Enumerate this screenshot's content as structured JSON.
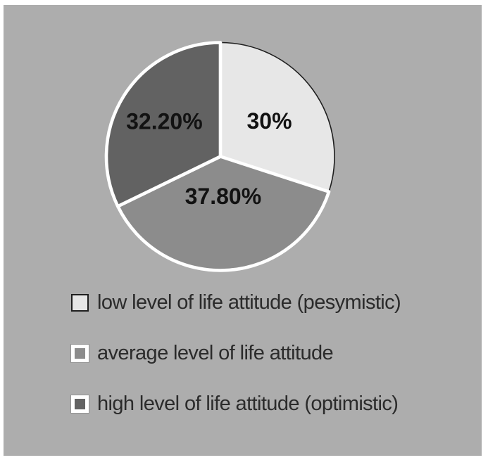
{
  "panel": {
    "background_color": "#adadad",
    "page_background_color": "#ffffff"
  },
  "chart_data": {
    "type": "pie",
    "title": "",
    "start_angle_deg": 0,
    "direction": "clockwise",
    "legend_position": "bottom",
    "label_color": "#121212",
    "slices": [
      {
        "label": "30%",
        "value": 30,
        "legend": "low level of life attitude (pesymistic)",
        "color": "#e7e7e7",
        "border_color": "#1f1f1f",
        "border_width": 1.6
      },
      {
        "label": "37.80%",
        "value": 37.8,
        "legend": "average level of life attitude",
        "color": "#8c8c8c",
        "border_color": "#ffffff",
        "border_width": 4.6
      },
      {
        "label": "32.20%",
        "value": 32.2,
        "legend": "high level of life attitude (optimistic)",
        "color": "#626262",
        "border_color": "#ffffff",
        "border_width": 4.6
      }
    ]
  }
}
